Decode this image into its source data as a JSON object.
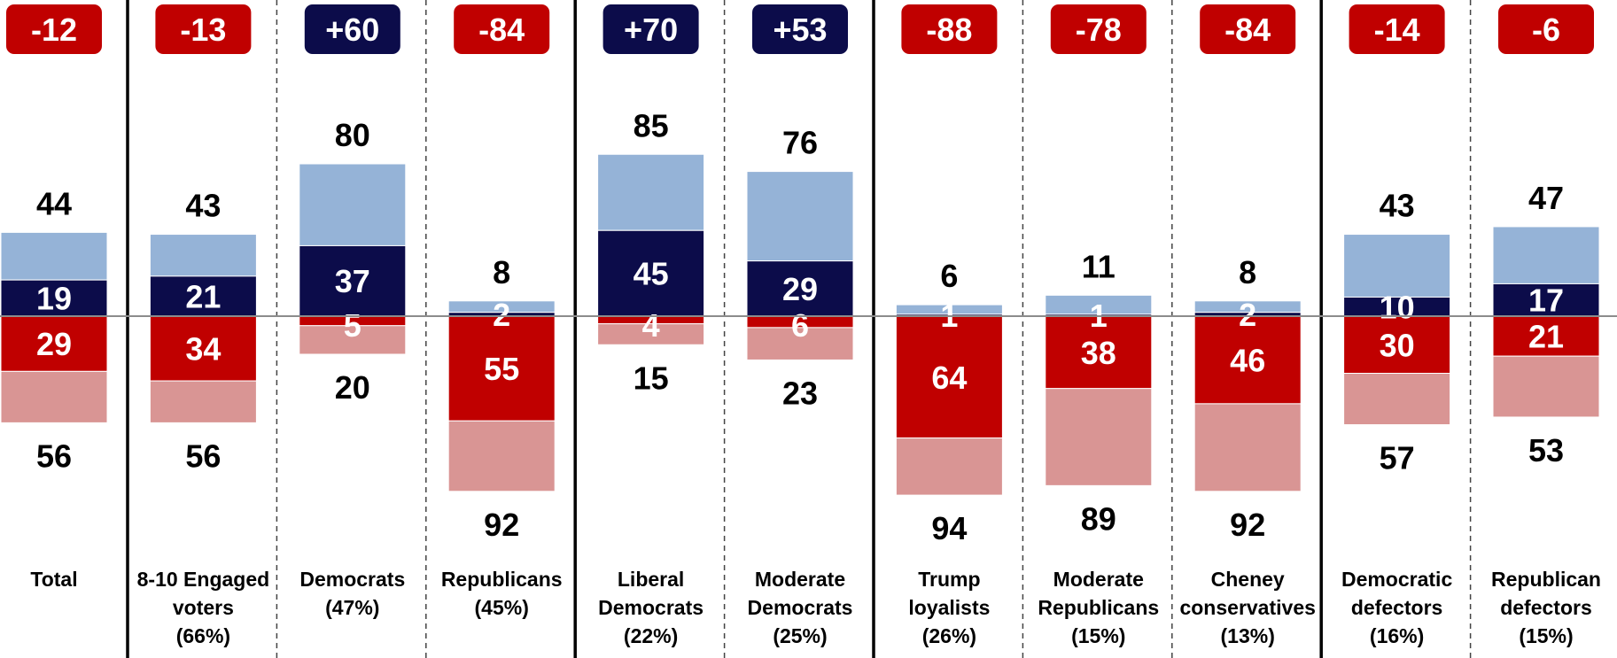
{
  "chart_data": {
    "type": "bar",
    "subtype": "diverging-stacked",
    "colors": {
      "strong_positive": "#0c0c4a",
      "weak_positive": "#95b3d7",
      "strong_negative": "#c00000",
      "weak_negative": "#d99594",
      "positive_badge": "#0c0c4a",
      "negative_badge": "#c00000",
      "zero_line": "#8c8c8c"
    },
    "categories": [
      {
        "label": "Total",
        "net": "-12",
        "pos_total": 44,
        "pos_strong": 19,
        "neg_strong": 29,
        "neg_total": 56
      },
      {
        "label": "8-10 Engaged voters (66%)",
        "net": "-13",
        "pos_total": 43,
        "pos_strong": 21,
        "neg_strong": 34,
        "neg_total": 56
      },
      {
        "label": "Democrats (47%)",
        "net": "+60",
        "pos_total": 80,
        "pos_strong": 37,
        "neg_strong": 5,
        "neg_total": 20
      },
      {
        "label": "Republicans (45%)",
        "net": "-84",
        "pos_total": 8,
        "pos_strong": 2,
        "neg_strong": 55,
        "neg_total": 92
      },
      {
        "label": "Liberal Democrats (22%)",
        "net": "+70",
        "pos_total": 85,
        "pos_strong": 45,
        "neg_strong": 4,
        "neg_total": 15
      },
      {
        "label": "Moderate Democrats (25%)",
        "net": "+53",
        "pos_total": 76,
        "pos_strong": 29,
        "neg_strong": 6,
        "neg_total": 23
      },
      {
        "label": "Trump loyalists (26%)",
        "net": "-88",
        "pos_total": 6,
        "pos_strong": 1,
        "neg_strong": 64,
        "neg_total": 94
      },
      {
        "label": "Moderate Republicans (15%)",
        "net": "-78",
        "pos_total": 11,
        "pos_strong": 1,
        "neg_strong": 38,
        "neg_total": 89
      },
      {
        "label": "Cheney conservatives (13%)",
        "net": "-84",
        "pos_total": 8,
        "pos_strong": 2,
        "neg_strong": 46,
        "neg_total": 92
      },
      {
        "label": "Democratic defectors (16%)",
        "net": "-14",
        "pos_total": 43,
        "pos_strong": 10,
        "neg_strong": 30,
        "neg_total": 57
      },
      {
        "label": "Republican defectors (15%)",
        "net": "-6",
        "pos_total": 47,
        "pos_strong": 17,
        "neg_strong": 21,
        "neg_total": 53
      }
    ],
    "label_lines": [
      [
        "Total"
      ],
      [
        "8-10 Engaged",
        "voters",
        "(66%)"
      ],
      [
        "Democrats",
        "(47%)"
      ],
      [
        "Republicans",
        "(45%)"
      ],
      [
        "Liberal",
        "Democrats",
        "(22%)"
      ],
      [
        "Moderate",
        "Democrats",
        "(25%)"
      ],
      [
        "Trump",
        "loyalists",
        "(26%)"
      ],
      [
        "Moderate",
        "Republicans",
        "(15%)"
      ],
      [
        "Cheney",
        "conservatives",
        "(13%)"
      ],
      [
        "Democratic",
        "defectors",
        "(16%)"
      ],
      [
        "Republican",
        "defectors",
        "(15%)"
      ]
    ],
    "solid_separators_after": [
      0,
      3,
      5,
      8
    ],
    "title": "",
    "xlabel": "",
    "ylabel": ""
  }
}
